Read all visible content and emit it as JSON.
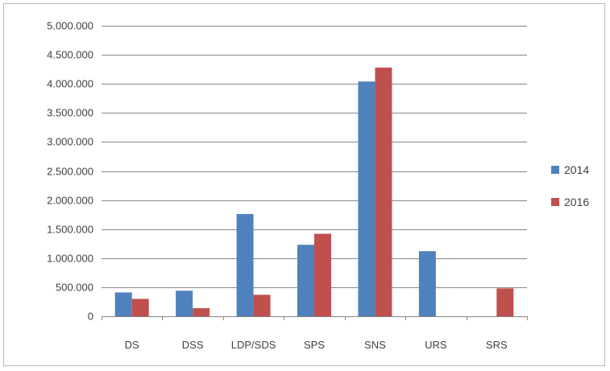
{
  "chart_data": {
    "type": "bar",
    "categories": [
      "DS",
      "DSS",
      "LDP/SDS",
      "SPS",
      "SNS",
      "URS",
      "SRS"
    ],
    "series": [
      {
        "name": "2014",
        "color": "#4f81bd",
        "values": [
          410000,
          440000,
          1760000,
          1230000,
          4040000,
          1120000,
          0
        ]
      },
      {
        "name": "2016",
        "color": "#c0504d",
        "values": [
          300000,
          140000,
          370000,
          1420000,
          4280000,
          0,
          480000
        ]
      }
    ],
    "y_ticks": [
      0,
      500000,
      1000000,
      1500000,
      2000000,
      2500000,
      3000000,
      3500000,
      4000000,
      4500000,
      5000000
    ],
    "y_tick_labels": [
      "0",
      "500.000",
      "1.000.000",
      "1.500.000",
      "2.000.000",
      "2.500.000",
      "3.000.000",
      "3.500.000",
      "4.000.000",
      "4.500.000",
      "5.000.000"
    ],
    "ylim": [
      0,
      5000000
    ],
    "grid": true,
    "legend": "right"
  }
}
